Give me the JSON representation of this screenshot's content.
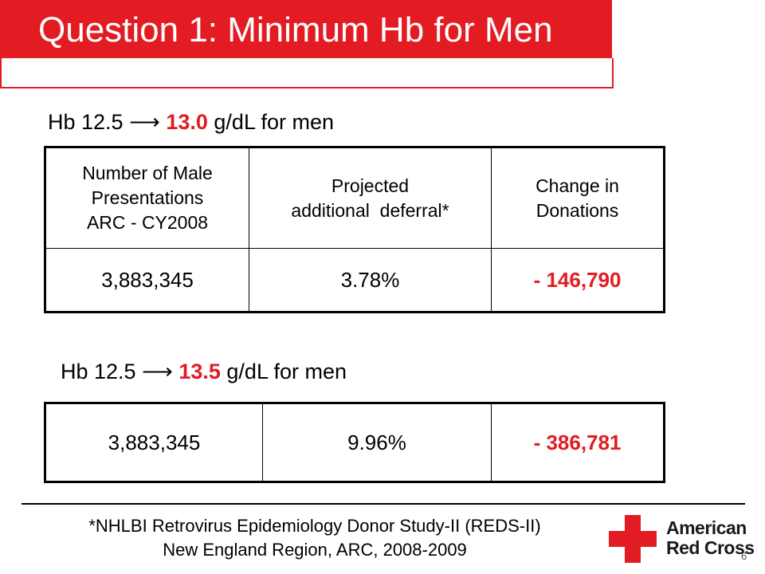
{
  "slide": {
    "title": "Question 1: Minimum Hb for Men",
    "page_number": "6"
  },
  "scenario1": {
    "prefix": "Hb 12.5",
    "arrow": "⟶",
    "value": "13.0",
    "suffix": "g/dL for men"
  },
  "scenario2": {
    "prefix": "Hb 12.5",
    "arrow": "⟶",
    "value": "13.5",
    "suffix": "g/dL for men"
  },
  "table1": {
    "headers": [
      [
        "Number of Male",
        "Presentations",
        "ARC - CY2008"
      ],
      [
        "Projected",
        "additional  deferral*"
      ],
      [
        "Change in",
        "Donations"
      ]
    ],
    "row": [
      "3,883,345",
      "3.78%",
      "- 146,790"
    ]
  },
  "table2": {
    "row": [
      "3,883,345",
      "9.96%",
      "- 386,781"
    ]
  },
  "footnote": {
    "line1": "*NHLBI Retrovirus Epidemiology Donor Study-II (REDS-II)",
    "line2": "New England Region, ARC, 2008-2009"
  },
  "logo": {
    "line1": "American",
    "line2": "Red Cross",
    "color": "#e31b23"
  },
  "colors": {
    "accent": "#e31b23"
  }
}
